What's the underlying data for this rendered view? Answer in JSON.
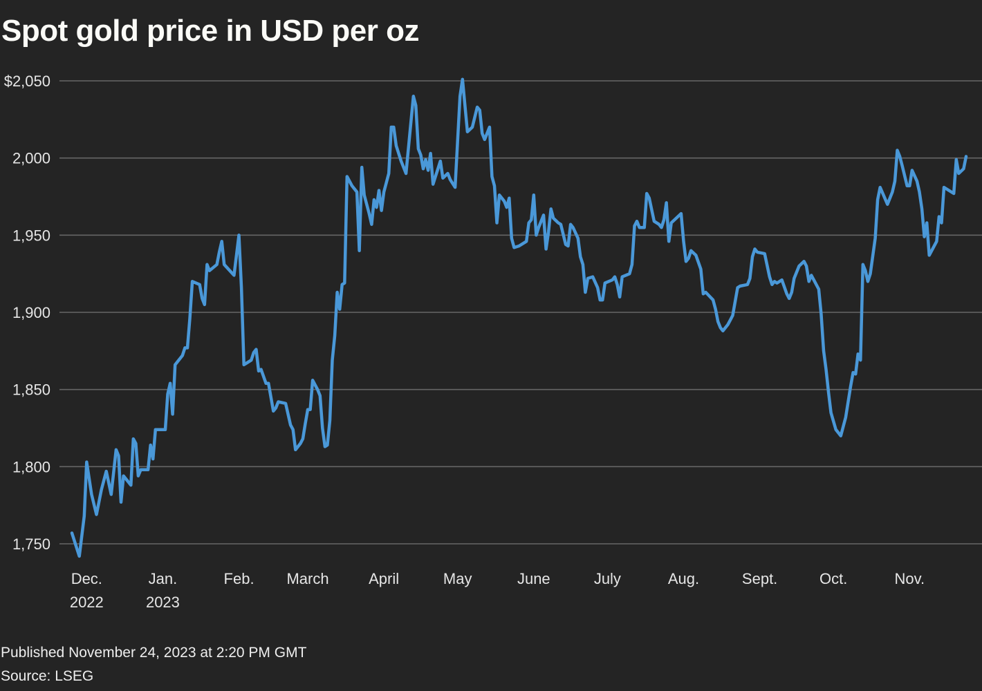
{
  "title": "Spot gold price in USD per oz",
  "footer": {
    "published": "Published November 24, 2023 at 2:20 PM GMT",
    "source": "Source: LSEG"
  },
  "colors": {
    "background": "#242424",
    "line": "#4a98d8",
    "grid": "#666666",
    "text": "#e6e6e6"
  },
  "chart_data": {
    "type": "line",
    "title": "Spot gold price in USD per oz",
    "xlabel": "",
    "ylabel": "",
    "xlim": [
      "2022-11-25",
      "2023-11-24"
    ],
    "ylim": [
      1750,
      2050
    ],
    "grid": "horizontal",
    "y_ticks": [
      {
        "value": 2050,
        "label": "$2,050"
      },
      {
        "value": 2000,
        "label": "2,000"
      },
      {
        "value": 1950,
        "label": "1,950"
      },
      {
        "value": 1900,
        "label": "1,900"
      },
      {
        "value": 1850,
        "label": "1,850"
      },
      {
        "value": 1800,
        "label": "1,800"
      },
      {
        "value": 1750,
        "label": "1,750"
      }
    ],
    "x_ticks": [
      {
        "date": "2022-12-01",
        "label": "Dec.",
        "sublabel": "2022"
      },
      {
        "date": "2023-01-01",
        "label": "Jan.",
        "sublabel": "2023"
      },
      {
        "date": "2023-02-01",
        "label": "Feb."
      },
      {
        "date": "2023-03-01",
        "label": "March"
      },
      {
        "date": "2023-04-01",
        "label": "April"
      },
      {
        "date": "2023-05-01",
        "label": "May"
      },
      {
        "date": "2023-06-01",
        "label": "June"
      },
      {
        "date": "2023-07-01",
        "label": "July"
      },
      {
        "date": "2023-08-01",
        "label": "Aug."
      },
      {
        "date": "2023-09-01",
        "label": "Sept."
      },
      {
        "date": "2023-10-01",
        "label": "Oct."
      },
      {
        "date": "2023-11-01",
        "label": "Nov."
      }
    ],
    "series": [
      {
        "points": [
          [
            "2022-11-25",
            1757
          ],
          [
            "2022-11-28",
            1742
          ],
          [
            "2022-11-30",
            1768
          ],
          [
            "2022-12-01",
            1803
          ],
          [
            "2022-12-03",
            1782
          ],
          [
            "2022-12-05",
            1769
          ],
          [
            "2022-12-07",
            1785
          ],
          [
            "2022-12-09",
            1797
          ],
          [
            "2022-12-11",
            1782
          ],
          [
            "2022-12-13",
            1811
          ],
          [
            "2022-12-14",
            1807
          ],
          [
            "2022-12-15",
            1777
          ],
          [
            "2022-12-16",
            1794
          ],
          [
            "2022-12-19",
            1788
          ],
          [
            "2022-12-20",
            1818
          ],
          [
            "2022-12-21",
            1815
          ],
          [
            "2022-12-22",
            1794
          ],
          [
            "2022-12-23",
            1798
          ],
          [
            "2022-12-26",
            1798
          ],
          [
            "2022-12-27",
            1814
          ],
          [
            "2022-12-28",
            1805
          ],
          [
            "2022-12-29",
            1824
          ],
          [
            "2023-01-02",
            1824
          ],
          [
            "2023-01-03",
            1847
          ],
          [
            "2023-01-04",
            1854
          ],
          [
            "2023-01-05",
            1834
          ],
          [
            "2023-01-06",
            1866
          ],
          [
            "2023-01-09",
            1872
          ],
          [
            "2023-01-10",
            1877
          ],
          [
            "2023-01-11",
            1877
          ],
          [
            "2023-01-12",
            1896
          ],
          [
            "2023-01-13",
            1920
          ],
          [
            "2023-01-16",
            1918
          ],
          [
            "2023-01-17",
            1909
          ],
          [
            "2023-01-18",
            1905
          ],
          [
            "2023-01-19",
            1931
          ],
          [
            "2023-01-20",
            1927
          ],
          [
            "2023-01-23",
            1931
          ],
          [
            "2023-01-24",
            1939
          ],
          [
            "2023-01-25",
            1946
          ],
          [
            "2023-01-26",
            1931
          ],
          [
            "2023-01-30",
            1924
          ],
          [
            "2023-02-01",
            1950
          ],
          [
            "2023-02-02",
            1916
          ],
          [
            "2023-02-03",
            1866
          ],
          [
            "2023-02-04",
            1867
          ],
          [
            "2023-02-06",
            1869
          ],
          [
            "2023-02-07",
            1874
          ],
          [
            "2023-02-08",
            1876
          ],
          [
            "2023-02-09",
            1862
          ],
          [
            "2023-02-10",
            1863
          ],
          [
            "2023-02-12",
            1854
          ],
          [
            "2023-02-13",
            1854
          ],
          [
            "2023-02-15",
            1836
          ],
          [
            "2023-02-16",
            1838
          ],
          [
            "2023-02-17",
            1842
          ],
          [
            "2023-02-20",
            1841
          ],
          [
            "2023-02-22",
            1827
          ],
          [
            "2023-02-23",
            1824
          ],
          [
            "2023-02-24",
            1811
          ],
          [
            "2023-02-26",
            1815
          ],
          [
            "2023-02-27",
            1818
          ],
          [
            "2023-02-28",
            1828
          ],
          [
            "2023-03-01",
            1837
          ],
          [
            "2023-03-02",
            1837
          ],
          [
            "2023-03-03",
            1856
          ],
          [
            "2023-03-05",
            1850
          ],
          [
            "2023-03-06",
            1846
          ],
          [
            "2023-03-07",
            1825
          ],
          [
            "2023-03-08",
            1813
          ],
          [
            "2023-03-09",
            1814
          ],
          [
            "2023-03-10",
            1830
          ],
          [
            "2023-03-11",
            1869
          ],
          [
            "2023-03-12",
            1885
          ],
          [
            "2023-03-13",
            1913
          ],
          [
            "2023-03-14",
            1902
          ],
          [
            "2023-03-15",
            1918
          ],
          [
            "2023-03-16",
            1919
          ],
          [
            "2023-03-17",
            1988
          ],
          [
            "2023-03-19",
            1982
          ],
          [
            "2023-03-21",
            1978
          ],
          [
            "2023-03-22",
            1940
          ],
          [
            "2023-03-23",
            1994
          ],
          [
            "2023-03-24",
            1976
          ],
          [
            "2023-03-26",
            1964
          ],
          [
            "2023-03-27",
            1957
          ],
          [
            "2023-03-28",
            1973
          ],
          [
            "2023-03-29",
            1968
          ],
          [
            "2023-03-30",
            1979
          ],
          [
            "2023-03-31",
            1966
          ],
          [
            "2023-04-01",
            1978
          ],
          [
            "2023-04-03",
            1990
          ],
          [
            "2023-04-04",
            2020
          ],
          [
            "2023-04-05",
            2020
          ],
          [
            "2023-04-06",
            2008
          ],
          [
            "2023-04-08",
            1998
          ],
          [
            "2023-04-10",
            1990
          ],
          [
            "2023-04-13",
            2040
          ],
          [
            "2023-04-14",
            2034
          ],
          [
            "2023-04-15",
            2006
          ],
          [
            "2023-04-16",
            2002
          ],
          [
            "2023-04-17",
            1993
          ],
          [
            "2023-04-18",
            1999
          ],
          [
            "2023-04-19",
            1992
          ],
          [
            "2023-04-20",
            2003
          ],
          [
            "2023-04-21",
            1983
          ],
          [
            "2023-04-22",
            1988
          ],
          [
            "2023-04-24",
            1998
          ],
          [
            "2023-04-25",
            1987
          ],
          [
            "2023-04-27",
            1990
          ],
          [
            "2023-04-28",
            1986
          ],
          [
            "2023-04-30",
            1981
          ],
          [
            "2023-05-02",
            2040
          ],
          [
            "2023-05-03",
            2051
          ],
          [
            "2023-05-05",
            2017
          ],
          [
            "2023-05-07",
            2020
          ],
          [
            "2023-05-09",
            2033
          ],
          [
            "2023-05-10",
            2031
          ],
          [
            "2023-05-11",
            2016
          ],
          [
            "2023-05-12",
            2012
          ],
          [
            "2023-05-14",
            2020
          ],
          [
            "2023-05-15",
            1988
          ],
          [
            "2023-05-16",
            1982
          ],
          [
            "2023-05-17",
            1958
          ],
          [
            "2023-05-18",
            1976
          ],
          [
            "2023-05-20",
            1972
          ],
          [
            "2023-05-21",
            1968
          ],
          [
            "2023-05-22",
            1974
          ],
          [
            "2023-05-23",
            1948
          ],
          [
            "2023-05-24",
            1942
          ],
          [
            "2023-05-26",
            1943
          ],
          [
            "2023-05-29",
            1946
          ],
          [
            "2023-05-30",
            1958
          ],
          [
            "2023-05-31",
            1960
          ],
          [
            "2023-06-01",
            1976
          ],
          [
            "2023-06-02",
            1950
          ],
          [
            "2023-06-03",
            1955
          ],
          [
            "2023-06-05",
            1963
          ],
          [
            "2023-06-06",
            1941
          ],
          [
            "2023-06-07",
            1952
          ],
          [
            "2023-06-08",
            1967
          ],
          [
            "2023-06-09",
            1961
          ],
          [
            "2023-06-11",
            1958
          ],
          [
            "2023-06-12",
            1957
          ],
          [
            "2023-06-14",
            1944
          ],
          [
            "2023-06-15",
            1943
          ],
          [
            "2023-06-16",
            1957
          ],
          [
            "2023-06-17",
            1955
          ],
          [
            "2023-06-19",
            1948
          ],
          [
            "2023-06-20",
            1936
          ],
          [
            "2023-06-21",
            1931
          ],
          [
            "2023-06-22",
            1913
          ],
          [
            "2023-06-23",
            1922
          ],
          [
            "2023-06-25",
            1923
          ],
          [
            "2023-06-27",
            1916
          ],
          [
            "2023-06-28",
            1908
          ],
          [
            "2023-06-29",
            1908
          ],
          [
            "2023-06-30",
            1919
          ],
          [
            "2023-07-03",
            1921
          ],
          [
            "2023-07-04",
            1923
          ],
          [
            "2023-07-05",
            1918
          ],
          [
            "2023-07-06",
            1910
          ],
          [
            "2023-07-07",
            1923
          ],
          [
            "2023-07-10",
            1925
          ],
          [
            "2023-07-11",
            1931
          ],
          [
            "2023-07-12",
            1956
          ],
          [
            "2023-07-13",
            1959
          ],
          [
            "2023-07-14",
            1955
          ],
          [
            "2023-07-16",
            1955
          ],
          [
            "2023-07-17",
            1977
          ],
          [
            "2023-07-18",
            1974
          ],
          [
            "2023-07-20",
            1959
          ],
          [
            "2023-07-22",
            1957
          ],
          [
            "2023-07-23",
            1955
          ],
          [
            "2023-07-24",
            1960
          ],
          [
            "2023-07-25",
            1971
          ],
          [
            "2023-07-26",
            1946
          ],
          [
            "2023-07-27",
            1958
          ],
          [
            "2023-07-31",
            1964
          ],
          [
            "2023-08-01",
            1946
          ],
          [
            "2023-08-02",
            1933
          ],
          [
            "2023-08-03",
            1935
          ],
          [
            "2023-08-04",
            1940
          ],
          [
            "2023-08-06",
            1937
          ],
          [
            "2023-08-08",
            1928
          ],
          [
            "2023-08-09",
            1912
          ],
          [
            "2023-08-10",
            1913
          ],
          [
            "2023-08-13",
            1908
          ],
          [
            "2023-08-14",
            1902
          ],
          [
            "2023-08-15",
            1894
          ],
          [
            "2023-08-16",
            1890
          ],
          [
            "2023-08-17",
            1888
          ],
          [
            "2023-08-19",
            1892
          ],
          [
            "2023-08-20",
            1895
          ],
          [
            "2023-08-21",
            1898
          ],
          [
            "2023-08-23",
            1916
          ],
          [
            "2023-08-24",
            1917
          ],
          [
            "2023-08-27",
            1918
          ],
          [
            "2023-08-28",
            1922
          ],
          [
            "2023-08-29",
            1936
          ],
          [
            "2023-08-30",
            1941
          ],
          [
            "2023-08-31",
            1939
          ],
          [
            "2023-09-03",
            1938
          ],
          [
            "2023-09-05",
            1923
          ],
          [
            "2023-09-06",
            1918
          ],
          [
            "2023-09-07",
            1920
          ],
          [
            "2023-09-08",
            1919
          ],
          [
            "2023-09-10",
            1921
          ],
          [
            "2023-09-12",
            1912
          ],
          [
            "2023-09-13",
            1909
          ],
          [
            "2023-09-14",
            1913
          ],
          [
            "2023-09-15",
            1922
          ],
          [
            "2023-09-17",
            1930
          ],
          [
            "2023-09-19",
            1933
          ],
          [
            "2023-09-20",
            1930
          ],
          [
            "2023-09-21",
            1920
          ],
          [
            "2023-09-22",
            1924
          ],
          [
            "2023-09-23",
            1921
          ],
          [
            "2023-09-25",
            1915
          ],
          [
            "2023-09-26",
            1899
          ],
          [
            "2023-09-27",
            1875
          ],
          [
            "2023-09-28",
            1863
          ],
          [
            "2023-09-29",
            1848
          ],
          [
            "2023-09-30",
            1835
          ],
          [
            "2023-10-02",
            1824
          ],
          [
            "2023-10-04",
            1820
          ],
          [
            "2023-10-06",
            1832
          ],
          [
            "2023-10-08",
            1852
          ],
          [
            "2023-10-09",
            1861
          ],
          [
            "2023-10-10",
            1860
          ],
          [
            "2023-10-11",
            1873
          ],
          [
            "2023-10-12",
            1869
          ],
          [
            "2023-10-13",
            1931
          ],
          [
            "2023-10-14",
            1927
          ],
          [
            "2023-10-15",
            1920
          ],
          [
            "2023-10-16",
            1925
          ],
          [
            "2023-10-18",
            1948
          ],
          [
            "2023-10-19",
            1973
          ],
          [
            "2023-10-20",
            1981
          ],
          [
            "2023-10-23",
            1970
          ],
          [
            "2023-10-25",
            1978
          ],
          [
            "2023-10-26",
            1985
          ],
          [
            "2023-10-27",
            2005
          ],
          [
            "2023-10-28",
            2001
          ],
          [
            "2023-10-29",
            1995
          ],
          [
            "2023-10-31",
            1982
          ],
          [
            "2023-11-01",
            1982
          ],
          [
            "2023-11-02",
            1992
          ],
          [
            "2023-11-04",
            1985
          ],
          [
            "2023-11-05",
            1978
          ],
          [
            "2023-11-06",
            1967
          ],
          [
            "2023-11-07",
            1949
          ],
          [
            "2023-11-08",
            1958
          ],
          [
            "2023-11-09",
            1937
          ],
          [
            "2023-11-12",
            1946
          ],
          [
            "2023-11-13",
            1962
          ],
          [
            "2023-11-14",
            1958
          ],
          [
            "2023-11-15",
            1981
          ],
          [
            "2023-11-19",
            1977
          ],
          [
            "2023-11-20",
            1999
          ],
          [
            "2023-11-21",
            1990
          ],
          [
            "2023-11-23",
            1993
          ],
          [
            "2023-11-24",
            2001
          ]
        ]
      }
    ]
  }
}
